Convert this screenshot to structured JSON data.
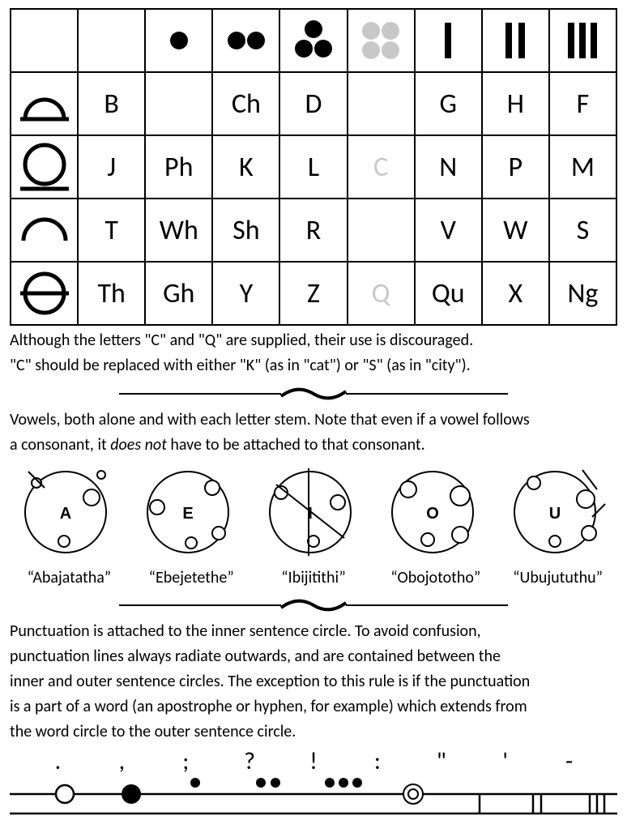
{
  "table": {
    "header_dots": [
      0,
      0,
      1,
      2,
      3,
      4,
      1,
      2,
      3
    ],
    "header_dot_colors": [
      "#000000",
      "#000000",
      "#000000",
      "#000000",
      "#000000",
      "#c8c8c8",
      "#000000",
      "#000000",
      "#000000"
    ],
    "header_type": [
      "blank",
      "blank",
      "dots",
      "dots",
      "dots",
      "dots",
      "bars",
      "bars",
      "bars"
    ],
    "row_heads": [
      "bottom-arc",
      "circle-line",
      "arc",
      "crossed-circle"
    ],
    "rows": [
      [
        "B",
        "",
        "Ch",
        "D",
        "",
        "G",
        "H",
        "F"
      ],
      [
        "J",
        "Ph",
        "K",
        "L",
        "C",
        "N",
        "P",
        "M"
      ],
      [
        "T",
        "Wh",
        "Sh",
        "R",
        "",
        "V",
        "W",
        "S"
      ],
      [
        "Th",
        "Gh",
        "Y",
        "Z",
        "Q",
        "Qu",
        "X",
        "Ng"
      ]
    ],
    "faded_cells": [
      [
        1,
        4
      ],
      [
        3,
        4
      ]
    ],
    "border_color": "#000000",
    "cell_fontsize": 34
  },
  "notes": {
    "line1": "Although the letters \"C\" and \"Q\" are supplied, their use is discouraged.",
    "line2": "\"C\" should be replaced with either \"K\" (as in \"cat\") or \"S\" (as in \"city\").",
    "vowel_intro1": "Vowels, both alone and with each letter stem. Note that even if a vowel follows",
    "vowel_intro2_pre": "a consonant, it ",
    "vowel_intro2_em": "does not",
    "vowel_intro2_post": " have to be attached to that consonant.",
    "punct1": "Punctuation is attached to the inner sentence circle. To avoid confusion,",
    "punct2": "punctuation lines always radiate outwards, and are contained between the",
    "punct3": "inner and outer sentence circles. The exception to this rule is if the punctuation",
    "punct4": "is a part of a word (an apostrophe or hyphen, for example) which extends from",
    "punct5": "the word circle to the outer sentence circle."
  },
  "vowels": {
    "letters": [
      "A",
      "E",
      "I",
      "O",
      "U"
    ],
    "labels": [
      "“Abajatatha”",
      "“Ebejetethe”",
      "“Ibijitithi”",
      "“Obojototho”",
      "“Ubujututhu”"
    ],
    "stroke": "#000000",
    "fill": "#ffffff"
  },
  "punctuation": {
    "symbols": [
      ".",
      ",",
      ";",
      "?",
      "!",
      ":",
      "\"",
      "'",
      "-"
    ],
    "line_color": "#000000"
  },
  "colors": {
    "text": "#000000",
    "background": "#ffffff",
    "faded": "#c8c8c8"
  }
}
